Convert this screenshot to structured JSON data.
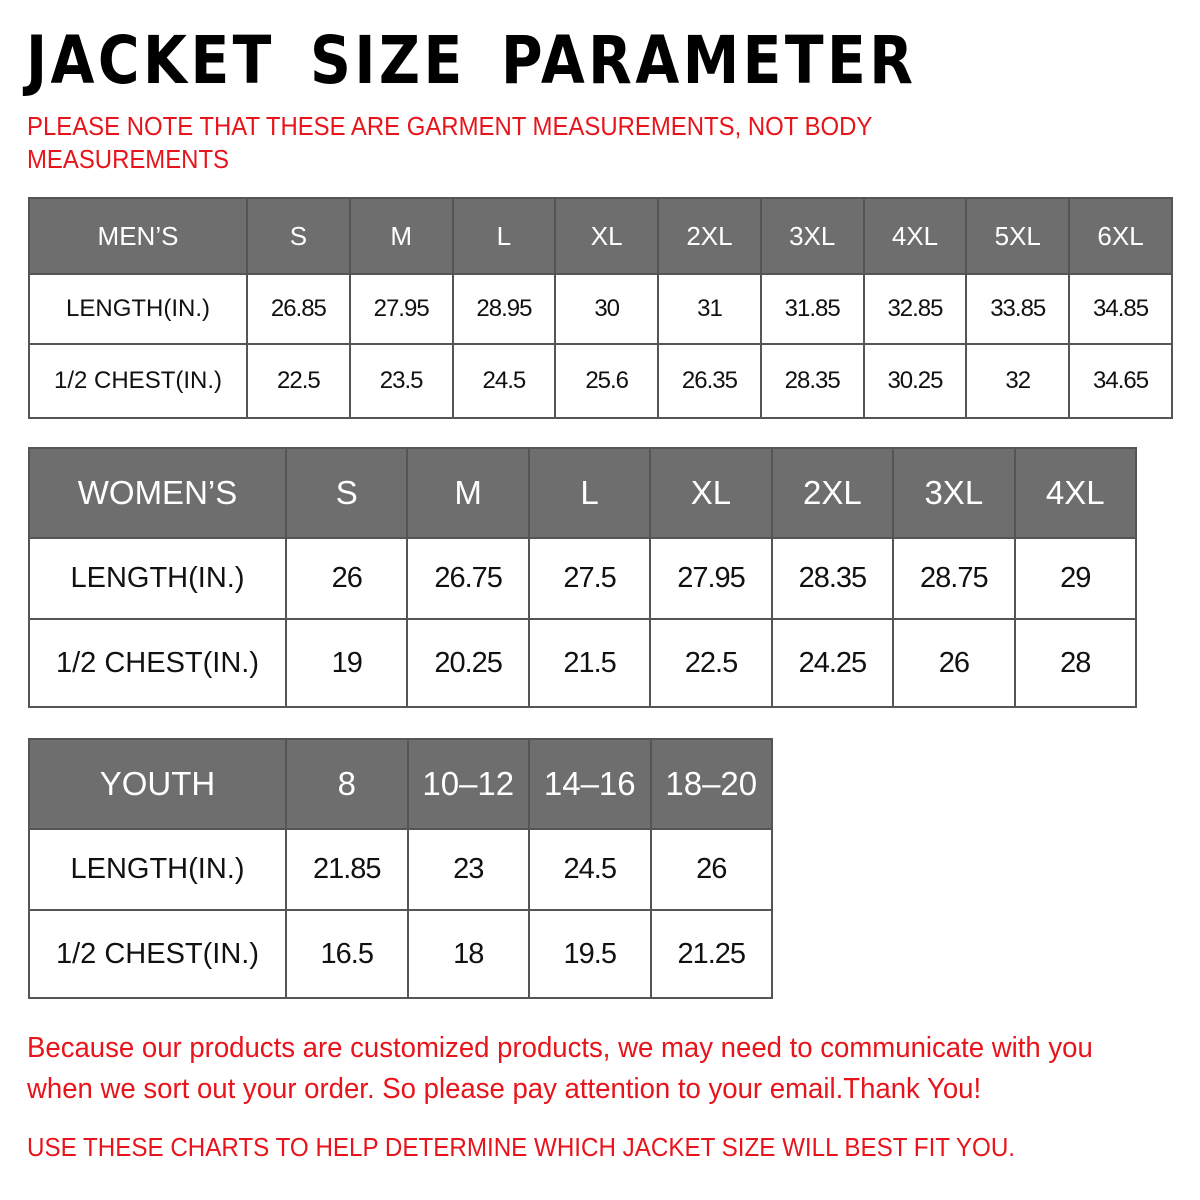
{
  "title": "JACKET SIZE PARAMETER",
  "note": "PLEASE NOTE THAT THESE ARE GARMENT MEASUREMENTS, NOT BODY MEASUREMENTS",
  "colors": {
    "header_bg": "#6e6e6e",
    "accent_red": "#e8141b"
  },
  "mens": {
    "header": "MEN’S",
    "sizes": [
      "S",
      "M",
      "L",
      "XL",
      "2XL",
      "3XL",
      "4XL",
      "5XL",
      "6XL"
    ],
    "rows": [
      {
        "label": "LENGTH(IN.)",
        "values": [
          "26.85",
          "27.95",
          "28.95",
          "30",
          "31",
          "31.85",
          "32.85",
          "33.85",
          "34.85"
        ]
      },
      {
        "label": "1/2 CHEST(IN.)",
        "values": [
          "22.5",
          "23.5",
          "24.5",
          "25.6",
          "26.35",
          "28.35",
          "30.25",
          "32",
          "34.65"
        ]
      }
    ]
  },
  "womens": {
    "header": "WOMEN’S",
    "sizes": [
      "S",
      "M",
      "L",
      "XL",
      "2XL",
      "3XL",
      "4XL"
    ],
    "rows": [
      {
        "label": "LENGTH(IN.)",
        "values": [
          "26",
          "26.75",
          "27.5",
          "27.95",
          "28.35",
          "28.75",
          "29"
        ]
      },
      {
        "label": "1/2 CHEST(IN.)",
        "values": [
          "19",
          "20.25",
          "21.5",
          "22.5",
          "24.25",
          "26",
          "28"
        ]
      }
    ]
  },
  "youth": {
    "header": "YOUTH",
    "sizes": [
      "8",
      "10–12",
      "14–16",
      "18–20"
    ],
    "rows": [
      {
        "label": "LENGTH(IN.)",
        "values": [
          "21.85",
          "23",
          "24.5",
          "26"
        ]
      },
      {
        "label": "1/2 CHEST(IN.)",
        "values": [
          "16.5",
          "18",
          "19.5",
          "21.25"
        ]
      }
    ]
  },
  "footer": {
    "message": "Because our products are customized products, we may need to communicate with you when we sort out your order. So please pay attention to your email.Thank You!",
    "advice": "USE THESE CHARTS TO HELP DETERMINE WHICH JACKET SIZE WILL BEST FIT YOU."
  }
}
